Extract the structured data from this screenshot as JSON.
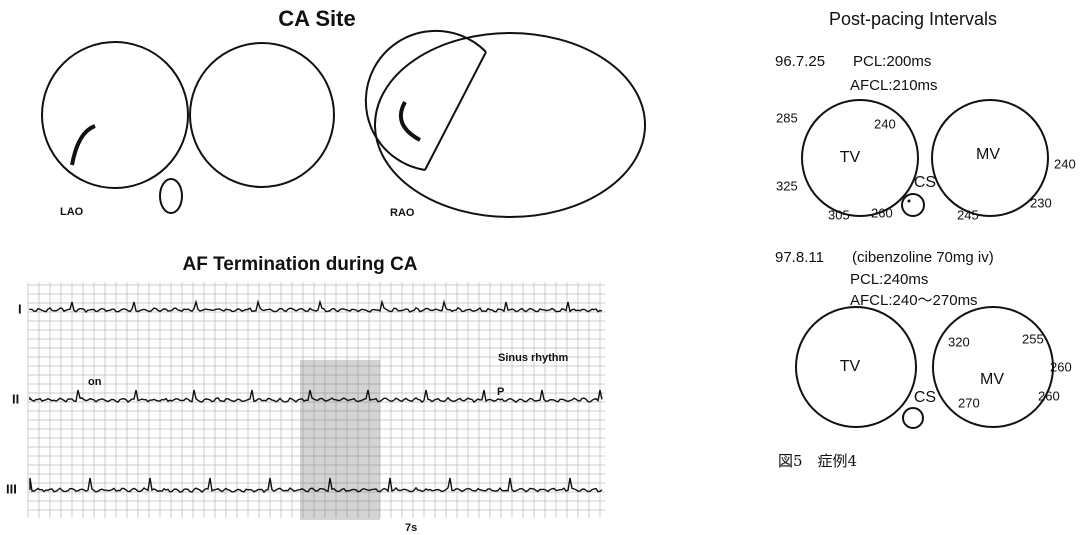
{
  "ca_site": {
    "title": "CA Site",
    "lao_label": "LAO",
    "rao_label": "RAO"
  },
  "af_termination": {
    "title": "AF Termination during CA",
    "leads": [
      "I",
      "II",
      "III"
    ],
    "on_label": "on",
    "sinus_label": "Sinus rhythm",
    "p_label": "P",
    "time_label": "7s"
  },
  "post_pacing": {
    "title": "Post-pacing Intervals",
    "study1": {
      "date": "96.7.25",
      "pcl": "PCL:200ms",
      "afcl": "AFCL:210ms",
      "tv": "TV",
      "mv": "MV",
      "cs": "CS",
      "intervals": [
        "285",
        "240",
        "325",
        "305",
        "260",
        "245",
        "230",
        "240"
      ]
    },
    "study2": {
      "date": "97.8.11",
      "drug": "(cibenzoline 70mg iv)",
      "pcl": "PCL:240ms",
      "afcl": "AFCL:240～270ms",
      "tv": "TV",
      "mv": "MV",
      "cs": "CS",
      "intervals": [
        "320",
        "255",
        "260",
        "260",
        "270"
      ]
    }
  },
  "caption": "図5　症例4"
}
